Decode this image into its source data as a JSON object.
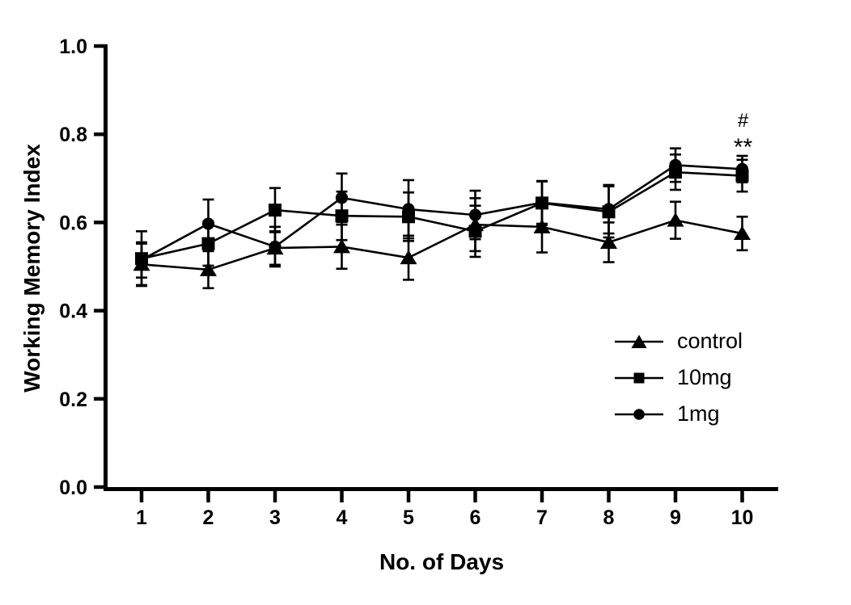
{
  "chart_data": {
    "type": "line",
    "title": "",
    "xlabel": "No. of Days",
    "ylabel": "Working Memory Index",
    "x": [
      1,
      2,
      3,
      4,
      5,
      6,
      7,
      8,
      9,
      10
    ],
    "x_tick_labels": [
      "1",
      "2",
      "3",
      "4",
      "5",
      "6",
      "7",
      "8",
      "9",
      "10"
    ],
    "y_ticks": [
      0.0,
      0.2,
      0.4,
      0.6,
      0.8,
      1.0
    ],
    "y_tick_labels": [
      "0.0",
      "0.2",
      "0.4",
      "0.6",
      "0.8",
      "1.0"
    ],
    "ylim": [
      0.0,
      1.0
    ],
    "xlim": [
      0.45,
      10.55
    ],
    "grid": false,
    "error_bars": true,
    "legend_position": "inside-right",
    "series": [
      {
        "name": "control",
        "marker": "triangle",
        "color": "#000000",
        "values": [
          0.505,
          0.493,
          0.542,
          0.545,
          0.52,
          0.595,
          0.59,
          0.555,
          0.605,
          0.575
        ],
        "errors": [
          0.047,
          0.042,
          0.038,
          0.05,
          0.05,
          0.06,
          0.058,
          0.045,
          0.042,
          0.038
        ]
      },
      {
        "name": "10mg",
        "marker": "square",
        "color": "#000000",
        "values": [
          0.518,
          0.552,
          0.628,
          0.615,
          0.613,
          0.58,
          0.644,
          0.624,
          0.714,
          0.706
        ],
        "errors": [
          0.062,
          0.05,
          0.05,
          0.055,
          0.055,
          0.058,
          0.05,
          0.058,
          0.04,
          0.036
        ]
      },
      {
        "name": "1mg",
        "marker": "circle",
        "color": "#000000",
        "values": [
          0.515,
          0.597,
          0.545,
          0.656,
          0.63,
          0.617,
          0.645,
          0.63,
          0.73,
          0.721
        ],
        "errors": [
          0.04,
          0.055,
          0.045,
          0.055,
          0.066,
          0.055,
          0.048,
          0.055,
          0.038,
          0.03
        ]
      }
    ],
    "annotations": [
      {
        "text": "#",
        "x": 10,
        "y": 0.833
      },
      {
        "text": "**",
        "x": 10,
        "y": 0.782
      }
    ]
  },
  "colors": {
    "foreground": "#000000",
    "background": "#ffffff"
  }
}
